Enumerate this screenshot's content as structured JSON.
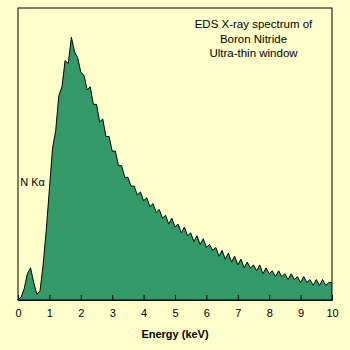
{
  "chart_data": {
    "type": "area",
    "title": [
      "EDS X-ray spectrum of",
      "Boron Nitride"
    ],
    "subtitle": "Ultra-thin window",
    "x_label": "Energy (keV)",
    "annotations": [
      {
        "text": "N Kα",
        "x": 0.4,
        "y": 39
      }
    ],
    "color": "#339966",
    "tick_labels": "x",
    "xlim": [
      0,
      10
    ],
    "xticks": [
      0,
      1,
      2,
      3,
      4,
      5,
      6,
      7,
      8,
      9,
      10
    ],
    "ylim": [
      0,
      100
    ],
    "x": [
      0,
      0.1,
      0.2,
      0.3,
      0.4,
      0.5,
      0.6,
      0.7,
      0.8,
      0.9,
      1,
      1.1,
      1.2,
      1.3,
      1.4,
      1.5,
      1.6,
      1.7,
      1.8,
      1.9,
      2,
      2.1,
      2.2,
      2.3,
      2.4,
      2.5,
      2.6,
      2.7,
      2.8,
      2.9,
      3,
      3.1,
      3.2,
      3.3,
      3.4,
      3.5,
      3.6,
      3.7,
      3.8,
      3.9,
      4,
      4.1,
      4.2,
      4.3,
      4.4,
      4.5,
      4.6,
      4.7,
      4.8,
      4.9,
      5,
      5.1,
      5.2,
      5.3,
      5.4,
      5.5,
      5.6,
      5.7,
      5.8,
      5.9,
      6,
      6.1,
      6.2,
      6.3,
      6.4,
      6.5,
      6.6,
      6.7,
      6.8,
      6.9,
      7,
      7.1,
      7.2,
      7.3,
      7.4,
      7.5,
      7.6,
      7.7,
      7.8,
      7.9,
      8,
      8.1,
      8.2,
      8.3,
      8.4,
      8.5,
      8.6,
      8.7,
      8.8,
      8.9,
      9,
      9.1,
      9.2,
      9.3,
      9.4,
      9.5,
      9.6,
      9.7,
      9.8,
      9.9,
      10
    ],
    "values": [
      0,
      1,
      4,
      9,
      11,
      6,
      2,
      3,
      12,
      24,
      38,
      52,
      58,
      70,
      73,
      82,
      81,
      90,
      85,
      83,
      78,
      77,
      72,
      73,
      67,
      67,
      61,
      62,
      56,
      56,
      51,
      51,
      46,
      46,
      42,
      42,
      39,
      39,
      36,
      37,
      34,
      35,
      32,
      33,
      30,
      31,
      28,
      29,
      26,
      28,
      25,
      26,
      23,
      25,
      22,
      23,
      20,
      22,
      19,
      21,
      18,
      19,
      17,
      18,
      15,
      17,
      14,
      16,
      13,
      15,
      12,
      14,
      11,
      13,
      11,
      12,
      10,
      12,
      9,
      11,
      9,
      10,
      8,
      10,
      8,
      9,
      7,
      9,
      7,
      8,
      6,
      8,
      6,
      7,
      5,
      7,
      5,
      7,
      5,
      6,
      6
    ]
  }
}
